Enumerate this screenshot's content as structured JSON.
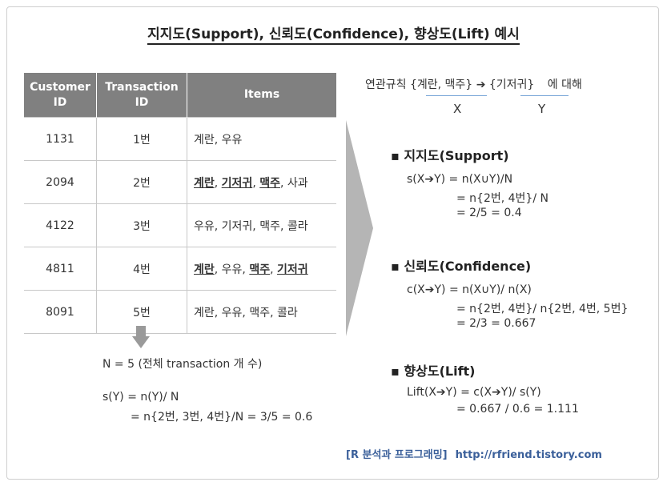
{
  "title": "지지도(Support), 신뢰도(Confidence), 향상도(Lift) 예시",
  "table": {
    "headers": [
      {
        "line1": "Customer",
        "line2": "ID"
      },
      {
        "line1": "Transaction",
        "line2": "ID"
      },
      {
        "line1": "Items",
        "line2": ""
      }
    ],
    "rows": [
      {
        "customer": "1131",
        "tid": "1번",
        "items": [
          {
            "t": "계란"
          },
          {
            "t": ", "
          },
          {
            "t": "우유"
          }
        ]
      },
      {
        "customer": "2094",
        "tid": "2번",
        "items": [
          {
            "t": "계란",
            "u": true
          },
          {
            "t": ", "
          },
          {
            "t": "기저귀",
            "u": true
          },
          {
            "t": ", "
          },
          {
            "t": "맥주",
            "u": true
          },
          {
            "t": ", 사과"
          }
        ]
      },
      {
        "customer": "4122",
        "tid": "3번",
        "items": [
          {
            "t": "우유, 기저귀, 맥주, 콜라"
          }
        ]
      },
      {
        "customer": "4811",
        "tid": "4번",
        "items": [
          {
            "t": "계란",
            "u": true
          },
          {
            "t": ", 우유, "
          },
          {
            "t": "맥주",
            "u": true
          },
          {
            "t": ", "
          },
          {
            "t": "기저귀",
            "u": true
          }
        ]
      },
      {
        "customer": "8091",
        "tid": "5번",
        "items": [
          {
            "t": "계란, 우유, 맥주, 콜라"
          }
        ]
      }
    ]
  },
  "left_notes": {
    "n_line": "N = 5  (전체 transaction 개 수)",
    "sy_line1": "s(Y) = n(Y)/ N",
    "sy_line2": "= n{2번, 3번, 4번}/N = 3/5 = 0.6"
  },
  "rule": {
    "prefix": "연관규칙",
    "x_set": "{계란, 맥주}",
    "arrow": "➔",
    "y_set": "{기저귀}",
    "suffix": "에 대해",
    "x_label": "X",
    "y_label": "Y"
  },
  "support": {
    "heading": "▪ 지지도(Support)",
    "l1": "s(X➔Y) = n(X∪Y)/N",
    "l2": "= n{2번, 4번}/ N",
    "l3": "= 2/5 = 0.4"
  },
  "confidence": {
    "heading": "▪ 신뢰도(Confidence)",
    "l1": "c(X➔Y) = n(X∪Y)/ n(X)",
    "l2": "= n{2번, 4번}/ n{2번, 4번, 5번}",
    "l3": "= 2/3 = 0.667"
  },
  "lift": {
    "heading": "▪ 향상도(Lift)",
    "l1": "Lift(X➔Y) = c(X➔Y)/ s(Y)",
    "l2": "= 0.667  / 0.6 = 1.111"
  },
  "footer": {
    "label": "[R 분석과 프로그래밍]",
    "url": "http://rfriend.tistory.com"
  },
  "colors": {
    "header_bg": "#808080",
    "arrow": "#b5b5b5",
    "footer": "#3a5f9a",
    "rule_underline": "#7aa6d8"
  }
}
